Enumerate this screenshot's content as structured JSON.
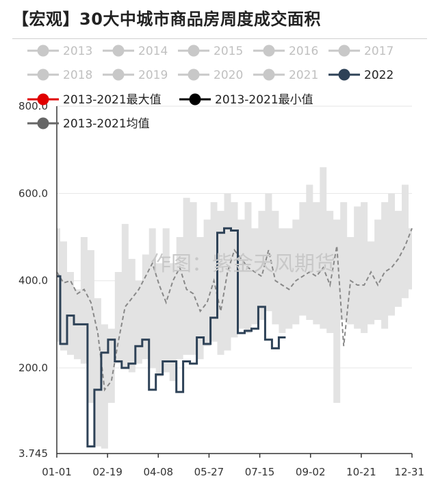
{
  "title": "【宏观】30大中城市商品房周度成交面积",
  "watermark": "作图：紫金天风期货",
  "colors": {
    "band": "#e3e3e3",
    "avg": "#888888",
    "s2022": "#2e4257",
    "legend_inactive": "#c8c8c8",
    "max": "#e00000",
    "min": "#000000",
    "avg_marker": "#666666",
    "axis": "#333333",
    "grid": "#e6e6e6"
  },
  "chart_data": {
    "type": "line",
    "title": "【宏观】30大中城市商品房周度成交面积",
    "xlabel": "",
    "ylabel": "",
    "x_ticks": [
      "01-01",
      "02-19",
      "04-08",
      "05-27",
      "07-15",
      "09-02",
      "10-21",
      "12-31"
    ],
    "y_ticks": [
      "800.0",
      "600.0",
      "400.0",
      "200.0",
      "3.745"
    ],
    "y_tick_values": [
      800,
      600,
      400,
      200,
      3.745
    ],
    "ylim": [
      3.745,
      800
    ],
    "xlim": [
      1,
      53
    ],
    "grid": true,
    "legend_position": "top",
    "legend": [
      {
        "label": "2013",
        "active": false
      },
      {
        "label": "2014",
        "active": false
      },
      {
        "label": "2015",
        "active": false
      },
      {
        "label": "2016",
        "active": false
      },
      {
        "label": "2017",
        "active": false
      },
      {
        "label": "2018",
        "active": false
      },
      {
        "label": "2019",
        "active": false
      },
      {
        "label": "2020",
        "active": false
      },
      {
        "label": "2021",
        "active": false
      },
      {
        "label": "2022",
        "active": true
      },
      {
        "label": "2013-2021最大值",
        "active": true
      },
      {
        "label": "2013-2021最小值",
        "active": true
      },
      {
        "label": "2013-2021均值",
        "active": true
      }
    ],
    "week": [
      1,
      2,
      3,
      4,
      5,
      6,
      7,
      8,
      9,
      10,
      11,
      12,
      13,
      14,
      15,
      16,
      17,
      18,
      19,
      20,
      21,
      22,
      23,
      24,
      25,
      26,
      27,
      28,
      29,
      30,
      31,
      32,
      33,
      34,
      35,
      36,
      37,
      38,
      39,
      40,
      41,
      42,
      43,
      44,
      45,
      46,
      47,
      48,
      49,
      50,
      51,
      52,
      53
    ],
    "series": [
      {
        "name": "2013-2021最大值",
        "values": [
          520,
          490,
          420,
          380,
          500,
          470,
          360,
          300,
          290,
          420,
          530,
          450,
          400,
          460,
          520,
          440,
          520,
          440,
          500,
          590,
          580,
          500,
          540,
          580,
          560,
          600,
          580,
          540,
          580,
          520,
          560,
          600,
          560,
          520,
          520,
          540,
          580,
          620,
          580,
          660,
          560,
          540,
          580,
          500,
          570,
          580,
          490,
          540,
          580,
          600,
          560,
          620,
          520
        ]
      },
      {
        "name": "2013-2021最小值",
        "values": [
          260,
          240,
          230,
          220,
          210,
          120,
          20,
          15,
          120,
          210,
          200,
          190,
          210,
          220,
          200,
          180,
          190,
          170,
          220,
          230,
          230,
          220,
          250,
          260,
          230,
          240,
          270,
          290,
          280,
          300,
          310,
          330,
          300,
          280,
          290,
          300,
          320,
          310,
          300,
          290,
          280,
          120,
          310,
          300,
          290,
          280,
          300,
          310,
          290,
          320,
          340,
          360,
          380
        ]
      },
      {
        "name": "2013-2021均值",
        "values": [
          420,
          395,
          400,
          370,
          380,
          350,
          280,
          150,
          170,
          260,
          340,
          360,
          380,
          410,
          440,
          390,
          350,
          400,
          430,
          380,
          370,
          330,
          350,
          400,
          330,
          420,
          470,
          450,
          430,
          420,
          410,
          470,
          400,
          390,
          380,
          400,
          410,
          420,
          410,
          430,
          390,
          480,
          250,
          400,
          390,
          390,
          420,
          390,
          420,
          430,
          450,
          480,
          520
        ]
      },
      {
        "name": "2022",
        "values": [
          410,
          255,
          320,
          300,
          300,
          20,
          150,
          235,
          265,
          215,
          200,
          210,
          250,
          265,
          150,
          185,
          215,
          215,
          145,
          215,
          210,
          270,
          255,
          315,
          510,
          520,
          515,
          280,
          285,
          290,
          340,
          265,
          245,
          270,
          null,
          null,
          null,
          null,
          null,
          null,
          null,
          null,
          null,
          null,
          null,
          null,
          null,
          null,
          null,
          null,
          null,
          null,
          null
        ]
      }
    ]
  }
}
